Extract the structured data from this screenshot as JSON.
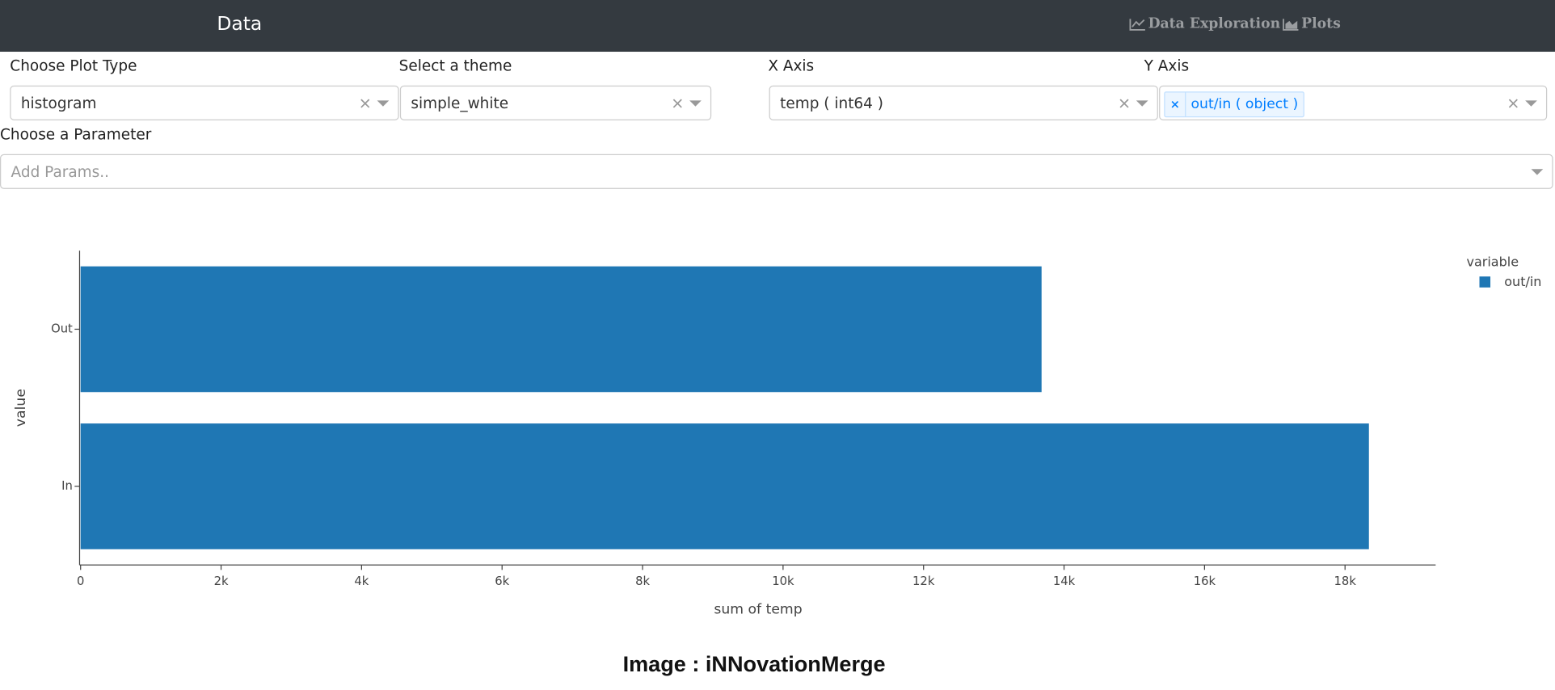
{
  "navbar": {
    "brand": "Data",
    "links": [
      "Data Exploration",
      "Plots"
    ]
  },
  "form": {
    "plot_type": {
      "label": "Choose Plot Type",
      "value": "histogram"
    },
    "theme": {
      "label": "Select a theme",
      "value": "simple_white"
    },
    "x_axis": {
      "label": "X Axis",
      "value": "temp ( int64 )"
    },
    "y_axis": {
      "label": "Y Axis",
      "tags": [
        "out/in ( object )"
      ]
    },
    "params": {
      "label": "Choose a Parameter",
      "placeholder": "Add Params.."
    }
  },
  "chart_data": {
    "type": "bar",
    "orientation": "horizontal",
    "categories": [
      "Out",
      "In"
    ],
    "series": [
      {
        "name": "out/in",
        "color": "#1f77b4",
        "values": [
          13680,
          18340
        ]
      }
    ],
    "xlim": [
      0,
      19290
    ],
    "xticks": [
      0,
      {
        "value": 2000,
        "label": "2k"
      },
      {
        "value": 4000,
        "label": "4k"
      },
      {
        "value": 6000,
        "label": "6k"
      },
      {
        "value": 8000,
        "label": "8k"
      },
      {
        "value": 10000,
        "label": "10k"
      },
      {
        "value": 12000,
        "label": "12k"
      },
      {
        "value": 14000,
        "label": "14k"
      },
      {
        "value": 16000,
        "label": "16k"
      },
      {
        "value": 18000,
        "label": "18k"
      }
    ],
    "x_label": "sum of temp",
    "y_label": "value",
    "legend_title": "variable",
    "legend_position": "top-right",
    "grid": false
  },
  "footer": "Image : iNNovationMerge"
}
